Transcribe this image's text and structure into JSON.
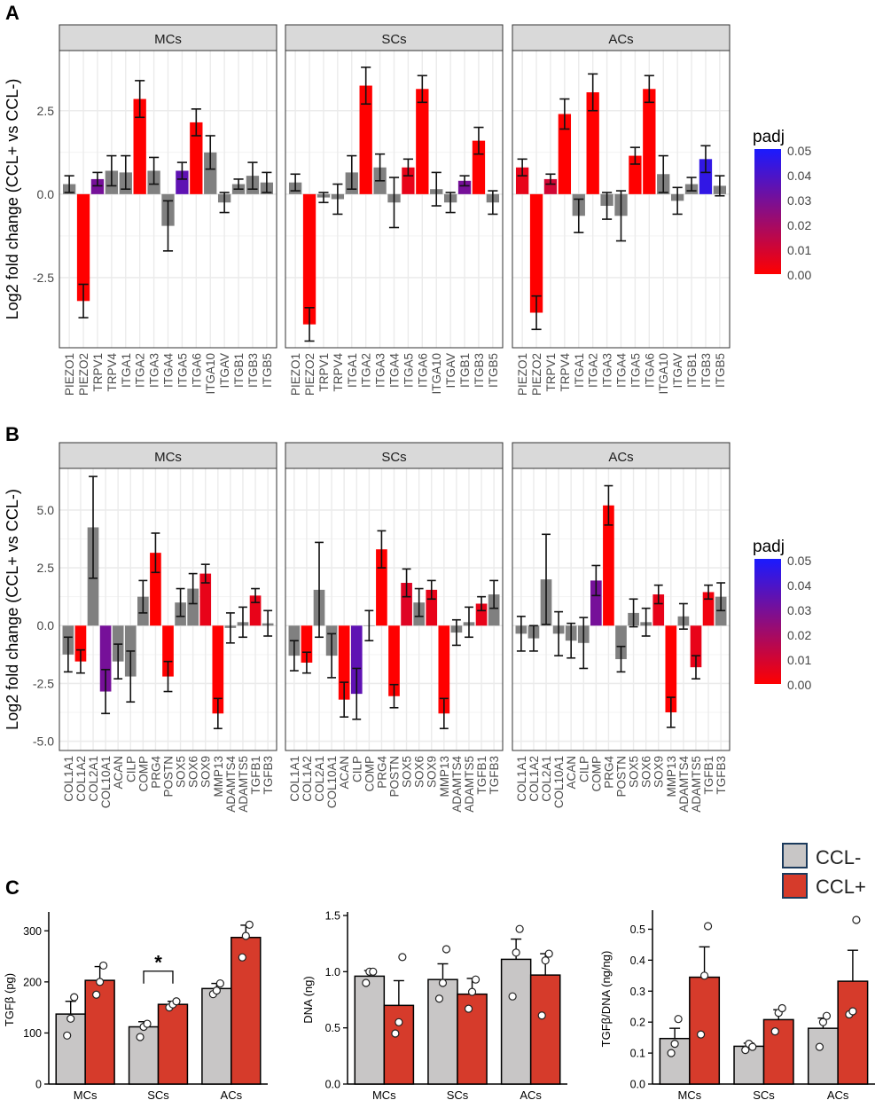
{
  "figure": {
    "panel_letters": [
      "A",
      "B",
      "C"
    ],
    "colorbar_title": "padj",
    "colorbar_ticks": [
      "0.05",
      "0.04",
      "0.03",
      "0.02",
      "0.01",
      "0.00"
    ],
    "colors": {
      "sig_low": "#ff0000",
      "sig_high": "#1a1aff",
      "nonsig": "#808080",
      "ccl_minus": "#c8c6c6",
      "ccl_plus": "#d63b2b",
      "strip": "#d9d9d9",
      "grid": "#ebebeb"
    }
  },
  "chart_data": [
    {
      "id": "A",
      "type": "bar",
      "title": "",
      "ylabel": "Log2 fold change (CCL+ vs CCL-)",
      "ylim": [
        -4.6,
        4.3
      ],
      "yticks": [
        -2.5,
        0.0,
        2.5
      ],
      "ytick_labels": [
        "-2.5",
        "0.0",
        "2.5"
      ],
      "categories": [
        "PIEZO1",
        "PIEZO2",
        "TRPV1",
        "TRPV4",
        "ITGA1",
        "ITGA2",
        "ITGA3",
        "ITGA4",
        "ITGA5",
        "ITGA6",
        "ITGA10",
        "ITGAV",
        "ITGB1",
        "ITGB3",
        "ITGB5"
      ],
      "facets": [
        {
          "name": "MCs",
          "values": [
            0.3,
            -3.2,
            0.45,
            0.7,
            0.65,
            2.85,
            0.7,
            -0.95,
            0.7,
            2.15,
            1.25,
            -0.25,
            0.3,
            0.55,
            0.35
          ],
          "errors": [
            0.25,
            0.5,
            0.2,
            0.45,
            0.5,
            0.55,
            0.4,
            0.75,
            0.25,
            0.4,
            0.5,
            0.3,
            0.15,
            0.4,
            0.3
          ],
          "padj": [
            null,
            0.0,
            0.03,
            null,
            null,
            0.0,
            null,
            null,
            0.035,
            0.0,
            null,
            null,
            null,
            null,
            null
          ]
        },
        {
          "name": "SCs",
          "values": [
            0.35,
            -3.9,
            -0.1,
            -0.15,
            0.65,
            3.25,
            0.8,
            -0.25,
            0.8,
            3.15,
            0.15,
            -0.25,
            0.4,
            1.6,
            -0.25
          ],
          "errors": [
            0.25,
            0.5,
            0.15,
            0.45,
            0.5,
            0.55,
            0.4,
            0.75,
            0.25,
            0.4,
            0.5,
            0.3,
            0.15,
            0.4,
            0.35
          ],
          "padj": [
            null,
            0.0,
            null,
            null,
            null,
            0.0,
            null,
            null,
            0.005,
            0.0,
            null,
            null,
            0.03,
            0.0,
            null
          ]
        },
        {
          "name": "ACs",
          "values": [
            0.8,
            -3.55,
            0.45,
            2.4,
            -0.65,
            3.05,
            -0.35,
            -0.65,
            1.15,
            3.15,
            0.6,
            -0.2,
            0.3,
            1.05,
            0.25
          ],
          "errors": [
            0.25,
            0.5,
            0.15,
            0.45,
            0.5,
            0.55,
            0.4,
            0.75,
            0.25,
            0.4,
            0.55,
            0.4,
            0.2,
            0.4,
            0.3
          ],
          "padj": [
            0.005,
            0.0,
            0.01,
            0.0,
            null,
            0.0,
            null,
            null,
            0.0,
            0.0,
            null,
            null,
            null,
            0.045,
            null
          ]
        }
      ]
    },
    {
      "id": "B",
      "type": "bar",
      "title": "",
      "ylabel": "Log2 fold change (CCL+ vs CCL-)",
      "ylim": [
        -5.4,
        6.8
      ],
      "yticks": [
        -5,
        -2.5,
        0,
        2.5,
        5
      ],
      "ytick_labels": [
        "-5.0",
        "-2.5",
        "0.0",
        "2.5",
        "5.0"
      ],
      "categories": [
        "COL1A1",
        "COL1A2",
        "COL2A1",
        "COL10A1",
        "ACAN",
        "CILP",
        "COMP",
        "PRG4",
        "POSTN",
        "SOX5",
        "SOX6",
        "SOX9",
        "MMP13",
        "ADAMTS4",
        "ADAMTS5",
        "TGFB1",
        "TGFB3"
      ],
      "facets": [
        {
          "name": "MCs",
          "values": [
            -1.25,
            -1.55,
            4.25,
            -2.85,
            -1.55,
            -2.2,
            1.25,
            3.15,
            -2.2,
            1.0,
            1.6,
            2.25,
            -3.8,
            -0.1,
            0.15,
            1.3,
            0.1
          ],
          "errors": [
            0.75,
            0.5,
            2.2,
            0.95,
            0.75,
            1.1,
            0.7,
            0.85,
            0.65,
            0.6,
            0.65,
            0.4,
            0.65,
            0.65,
            0.65,
            0.3,
            0.55
          ],
          "padj": [
            null,
            0.0,
            null,
            0.03,
            null,
            null,
            null,
            0.0,
            0.0,
            null,
            null,
            0.005,
            0.0,
            null,
            null,
            0.005,
            null
          ]
        },
        {
          "name": "SCs",
          "values": [
            -1.3,
            -1.6,
            1.55,
            -1.3,
            -3.2,
            -2.95,
            0.0,
            3.3,
            -3.05,
            1.85,
            1.0,
            1.55,
            -3.8,
            -0.3,
            0.15,
            0.95,
            1.35
          ],
          "errors": [
            0.65,
            0.45,
            2.05,
            0.95,
            0.75,
            1.1,
            0.65,
            0.8,
            0.5,
            0.6,
            0.6,
            0.4,
            0.65,
            0.55,
            0.65,
            0.3,
            0.6
          ],
          "padj": [
            null,
            0.0,
            null,
            null,
            0.0,
            0.035,
            null,
            0.0,
            0.0,
            0.007,
            null,
            0.005,
            0.0,
            null,
            null,
            0.005,
            null
          ]
        },
        {
          "name": "ACs",
          "values": [
            -0.35,
            -0.55,
            2.0,
            -0.35,
            -0.65,
            -0.75,
            1.95,
            5.2,
            -1.45,
            0.55,
            0.15,
            1.35,
            -3.75,
            0.4,
            -1.8,
            1.45,
            1.25
          ],
          "errors": [
            0.75,
            0.55,
            1.95,
            0.95,
            0.75,
            1.1,
            0.65,
            0.85,
            0.55,
            0.6,
            0.6,
            0.4,
            0.65,
            0.55,
            0.5,
            0.3,
            0.6
          ],
          "padj": [
            null,
            null,
            null,
            null,
            null,
            null,
            0.03,
            0.0,
            null,
            null,
            null,
            0.005,
            0.0,
            null,
            0.005,
            0.003,
            null
          ]
        }
      ]
    },
    {
      "id": "C1",
      "type": "bar",
      "title": "",
      "xlabel": "",
      "ylabel": "TGFβ (pg)",
      "ylim": [
        0,
        330
      ],
      "yticks": [
        0,
        100,
        200,
        300
      ],
      "ytick_labels": [
        "0",
        "100",
        "200",
        "300"
      ],
      "categories": [
        "MCs",
        "SCs",
        "ACs"
      ],
      "series": [
        {
          "name": "CCL-",
          "values": [
            137,
            112,
            187
          ],
          "errors": [
            25,
            10,
            10
          ],
          "points": [
            [
              95,
              128,
              170
            ],
            [
              92,
              112,
              118
            ],
            [
              176,
              183,
              197
            ]
          ]
        },
        {
          "name": "CCL+",
          "values": [
            203,
            156,
            287
          ],
          "errors": [
            27,
            6,
            24
          ],
          "points": [
            [
              175,
              200,
              232
            ],
            [
              150,
              156,
              162
            ],
            [
              248,
              290,
              312
            ]
          ]
        }
      ],
      "significance": {
        "category": "SCs",
        "label": "*"
      }
    },
    {
      "id": "C2",
      "type": "bar",
      "title": "",
      "xlabel": "",
      "ylabel": "DNA (ng)",
      "ylim": [
        0,
        1.5
      ],
      "yticks": [
        0.0,
        0.5,
        1.0,
        1.5
      ],
      "ytick_labels": [
        "0.0",
        "0.5",
        "1.0",
        "1.5"
      ],
      "categories": [
        "MCs",
        "SCs",
        "ACs"
      ],
      "series": [
        {
          "name": "CCL-",
          "values": [
            0.96,
            0.93,
            1.11
          ],
          "errors": [
            0.05,
            0.14,
            0.18
          ],
          "points": [
            [
              0.9,
              1.0,
              1.0
            ],
            [
              0.76,
              0.9,
              1.2
            ],
            [
              0.78,
              1.17,
              1.38
            ]
          ]
        },
        {
          "name": "CCL+",
          "values": [
            0.7,
            0.8,
            0.97
          ],
          "errors": [
            0.22,
            0.14,
            0.19
          ],
          "points": [
            [
              0.45,
              0.55,
              1.13
            ],
            [
              0.67,
              0.82,
              0.93
            ],
            [
              0.61,
              1.1,
              1.16
            ]
          ]
        }
      ]
    },
    {
      "id": "C3",
      "type": "bar",
      "title": "",
      "xlabel": "",
      "ylabel": "TGFβ/DNA (ng/ng)",
      "ylim": [
        0,
        0.55
      ],
      "yticks": [
        0.0,
        0.1,
        0.2,
        0.3,
        0.4,
        0.5
      ],
      "ytick_labels": [
        "0.0",
        "0.1",
        "0.2",
        "0.3",
        "0.4",
        "0.5"
      ],
      "categories": [
        "MCs",
        "SCs",
        "ACs"
      ],
      "series": [
        {
          "name": "CCL-",
          "values": [
            0.147,
            0.122,
            0.18
          ],
          "errors": [
            0.033,
            0.01,
            0.033
          ],
          "points": [
            [
              0.1,
              0.13,
              0.21
            ],
            [
              0.11,
              0.13,
              0.12
            ],
            [
              0.12,
              0.2,
              0.22
            ]
          ]
        },
        {
          "name": "CCL+",
          "values": [
            0.345,
            0.208,
            0.332
          ],
          "errors": [
            0.098,
            0.032,
            0.1
          ],
          "points": [
            [
              0.16,
              0.35,
              0.51
            ],
            [
              0.17,
              0.23,
              0.245
            ],
            [
              0.225,
              0.235,
              0.53
            ]
          ]
        }
      ]
    }
  ],
  "legend": {
    "items": [
      {
        "label": "CCL-",
        "color": "#c8c6c6"
      },
      {
        "label": "CCL+",
        "color": "#d63b2b"
      }
    ]
  }
}
